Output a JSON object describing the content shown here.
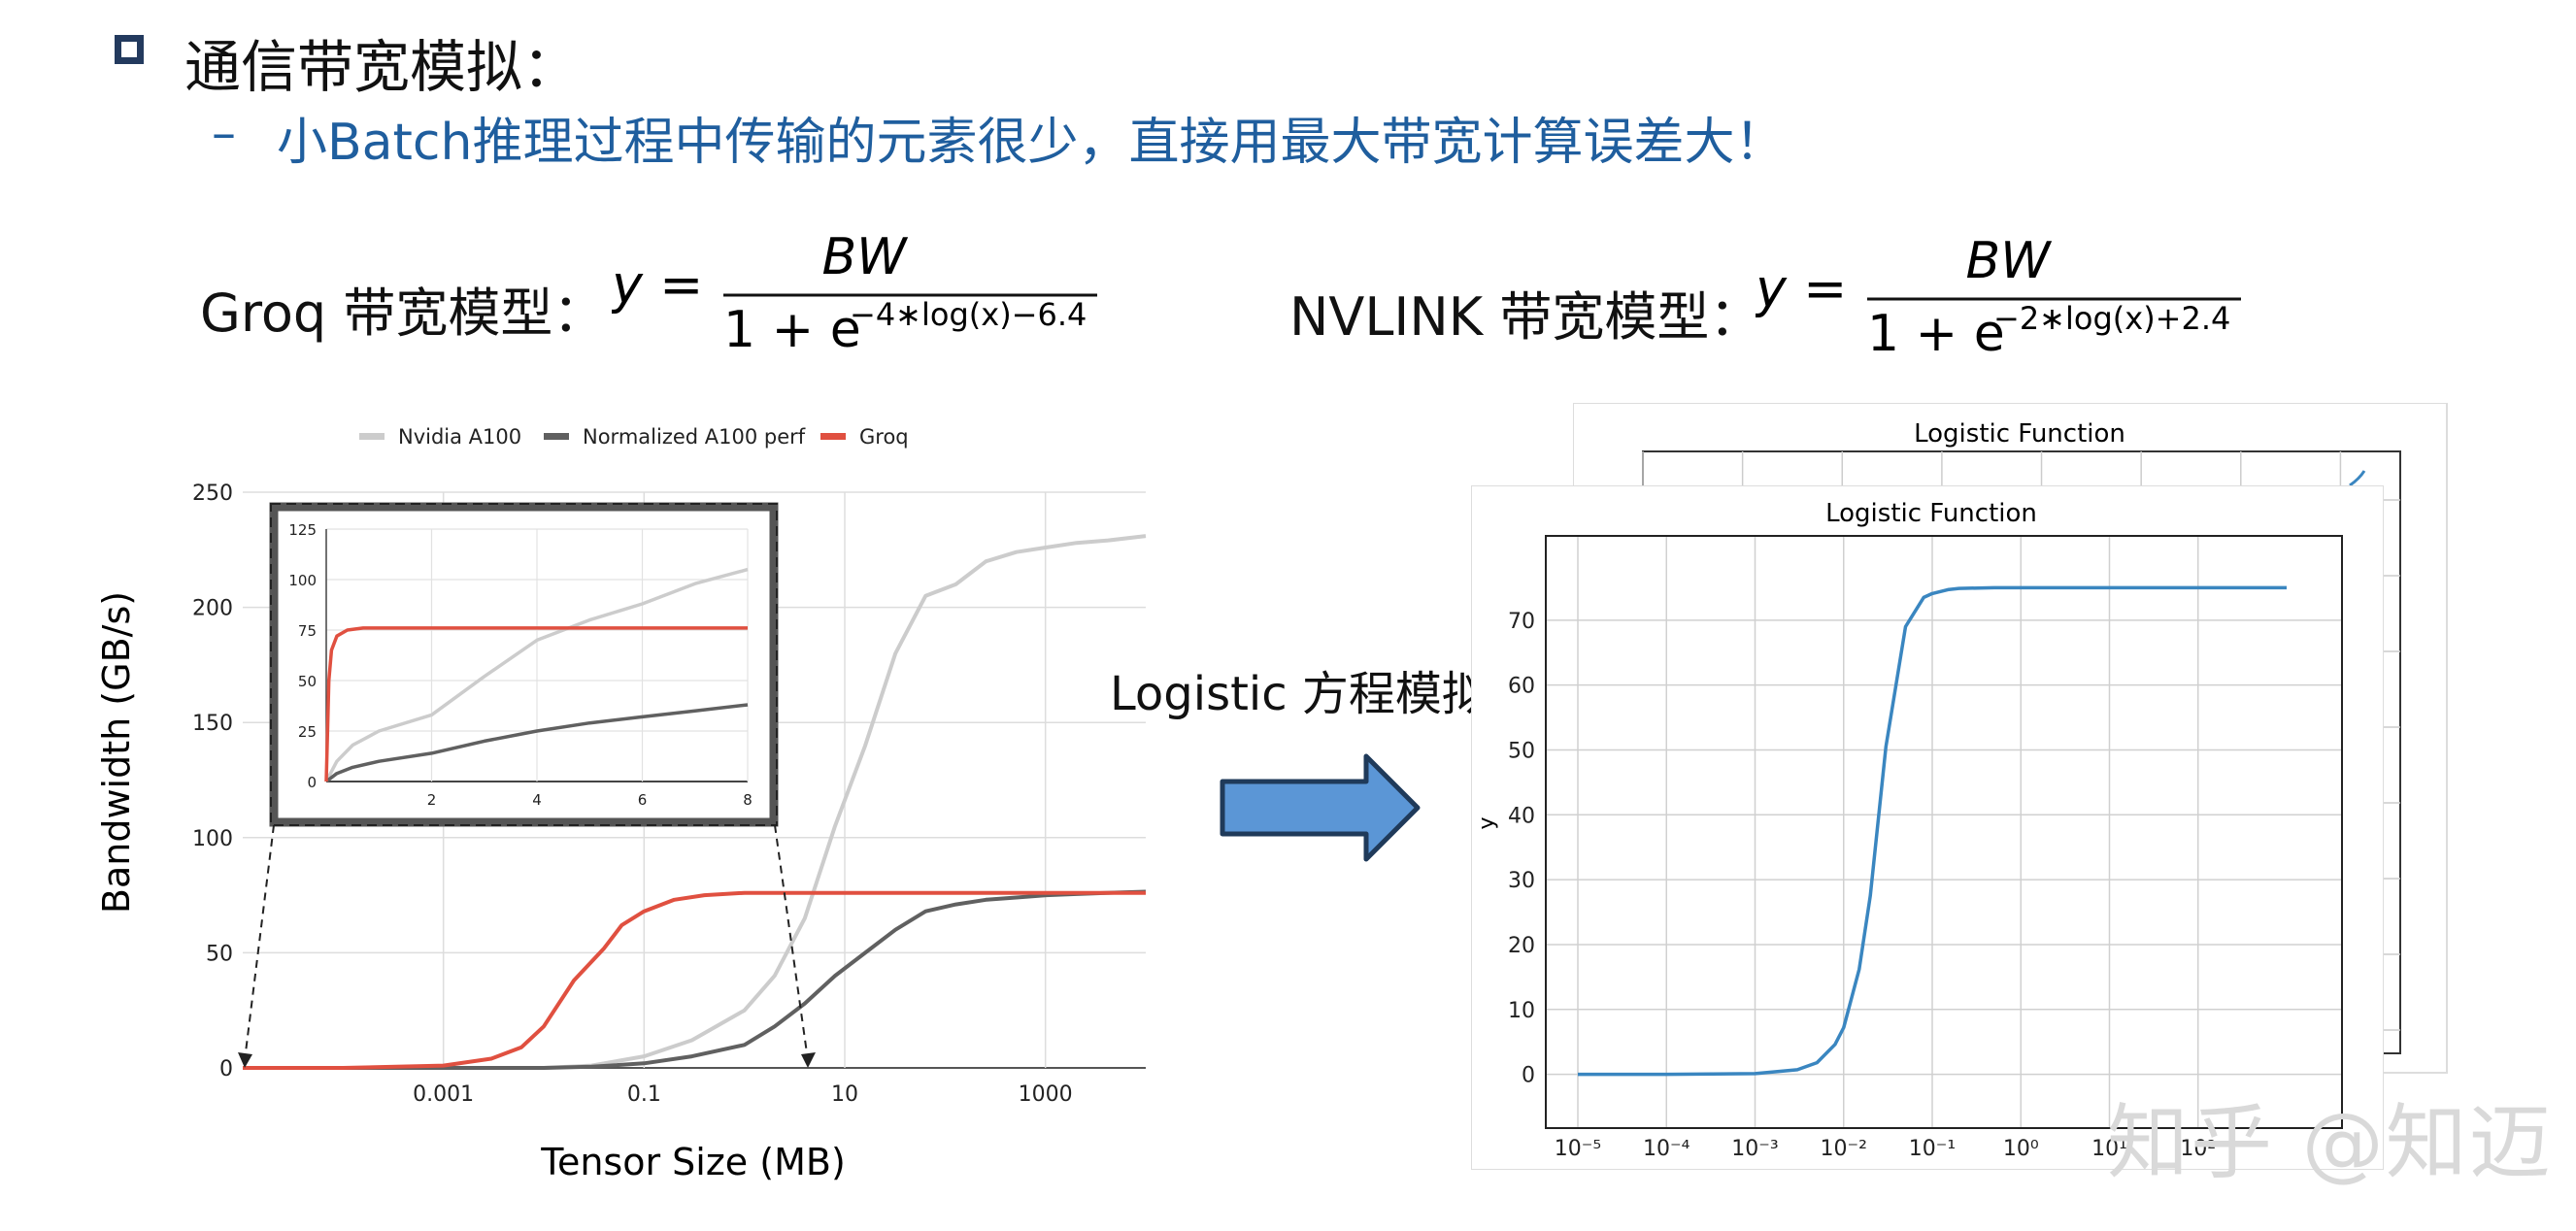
{
  "heading": "通信带宽模拟：",
  "subheading_dash": "–",
  "subheading": "小Batch推理过程中传输的元素很少，直接用最大带宽计算误差大！",
  "groq_formula": {
    "label": "Groq 带宽模型：",
    "lhs": "y =",
    "numerator": "BW",
    "denominator_base": "1 + e",
    "exponent": "−4∗log(x)−6.4"
  },
  "nvlink_formula": {
    "label": "NVLINK 带宽模型：",
    "lhs": "y =",
    "numerator": "BW",
    "denominator_base": "1 + e",
    "exponent": "−2∗log(x)+2.4"
  },
  "logistic_label": "Logistic 方程模拟",
  "watermark": "知乎 @知迈",
  "colors": {
    "nvidia": "#cccccc",
    "normalized": "#606060",
    "groq": "#e05040",
    "logistic_line": "#3a86c0",
    "arrow_fill": "#5b96d6",
    "arrow_stroke": "#1f3a5a",
    "heading_blue": "#1f5e9e"
  },
  "chart_data": [
    {
      "type": "line",
      "xscale": "log",
      "xlabel": "Tensor Size (MB)",
      "ylabel": "Bandwidth (GB/s)",
      "xticks": [
        0.001,
        0.1,
        10,
        1000
      ],
      "xtick_labels": [
        "0.001",
        "0.1",
        "10",
        "1000"
      ],
      "yticks": [
        0,
        50,
        100,
        150,
        200,
        250
      ],
      "yticks_labels": [
        "0",
        "50",
        "100",
        "150",
        "200",
        "250"
      ],
      "xlim": [
        1e-05,
        10000
      ],
      "ylim": [
        0,
        250
      ],
      "grid": true,
      "legend_position": "top",
      "series": [
        {
          "name": "Nvidia A100",
          "x": [
            1e-05,
            0.001,
            0.01,
            0.03,
            0.1,
            0.3,
            1,
            2,
            4,
            8,
            16,
            32,
            64,
            128,
            256,
            512,
            1024,
            2048,
            4096,
            10000
          ],
          "y": [
            0,
            0,
            0,
            1,
            5,
            12,
            25,
            40,
            65,
            105,
            140,
            180,
            205,
            210,
            220,
            224,
            226,
            228,
            229,
            231
          ]
        },
        {
          "name": "Normalized A100 perf",
          "x": [
            1e-05,
            0.001,
            0.01,
            0.03,
            0.1,
            0.3,
            1,
            2,
            4,
            8,
            16,
            32,
            64,
            128,
            256,
            512,
            1024,
            2048,
            4096,
            10000
          ],
          "y": [
            0,
            0,
            0,
            0.5,
            2,
            5,
            10,
            18,
            28,
            40,
            50,
            60,
            68,
            71,
            73,
            74,
            75,
            75.5,
            76,
            76.5
          ]
        },
        {
          "name": "Groq",
          "x": [
            1e-05,
            0.0001,
            0.001,
            0.003,
            0.006,
            0.01,
            0.02,
            0.04,
            0.06,
            0.1,
            0.2,
            0.4,
            1,
            2,
            10,
            100,
            1000,
            10000
          ],
          "y": [
            0,
            0,
            1,
            4,
            9,
            18,
            38,
            52,
            62,
            68,
            73,
            75,
            76,
            76,
            76,
            76,
            76,
            76
          ]
        }
      ]
    },
    {
      "type": "line",
      "title": "",
      "inset_of": "Bandwidth (GB/s)",
      "xlim": [
        0,
        8
      ],
      "ylim": [
        0,
        125
      ],
      "xticks": [
        2,
        4,
        6,
        8
      ],
      "yticks": [
        0,
        25,
        50,
        75,
        100,
        125
      ],
      "series": [
        {
          "name": "Nvidia A100",
          "x": [
            0,
            0.2,
            0.5,
            1,
            2,
            3,
            4,
            5,
            6,
            7,
            8
          ],
          "y": [
            0,
            10,
            18,
            25,
            33,
            52,
            70,
            80,
            88,
            98,
            105
          ]
        },
        {
          "name": "Normalized A100 perf",
          "x": [
            0,
            0.2,
            0.5,
            1,
            2,
            3,
            4,
            5,
            6,
            7,
            8
          ],
          "y": [
            0,
            4,
            7,
            10,
            14,
            20,
            25,
            29,
            32,
            35,
            38
          ]
        },
        {
          "name": "Groq",
          "x": [
            0,
            0.05,
            0.1,
            0.2,
            0.4,
            0.7,
            1,
            2,
            4,
            6,
            8
          ],
          "y": [
            0,
            50,
            65,
            72,
            75,
            76,
            76,
            76,
            76,
            76,
            76
          ]
        }
      ]
    },
    {
      "type": "line",
      "title": "Logistic Function",
      "xscale": "log",
      "ylabel": "y",
      "xlim": [
        1e-05,
        1000
      ],
      "ylim": [
        0,
        75
      ],
      "xticks_labels": [
        "10⁻⁵",
        "10⁻⁴",
        "10⁻³",
        "10⁻²",
        "10⁻¹",
        "10⁰",
        "10¹",
        "10²"
      ],
      "yticks_labels": [
        "0",
        "10",
        "20",
        "30",
        "40",
        "50",
        "60",
        "70"
      ],
      "grid": true,
      "series": [
        {
          "name": "",
          "x": [
            1e-05,
            0.0001,
            0.001,
            0.003,
            0.005,
            0.008,
            0.01,
            0.015,
            0.02,
            0.03,
            0.05,
            0.08,
            0.1,
            0.15,
            0.2,
            0.5,
            1,
            10,
            100,
            1000
          ],
          "y": [
            0,
            0,
            0.1,
            0.7,
            1.8,
            4.6,
            7.2,
            16.2,
            27.5,
            50.5,
            69,
            73.5,
            74.1,
            74.7,
            74.9,
            75,
            75,
            75,
            75,
            75
          ]
        }
      ]
    },
    {
      "type": "line",
      "title": "Logistic Function",
      "note": "back panel, partially hidden",
      "series": []
    }
  ]
}
